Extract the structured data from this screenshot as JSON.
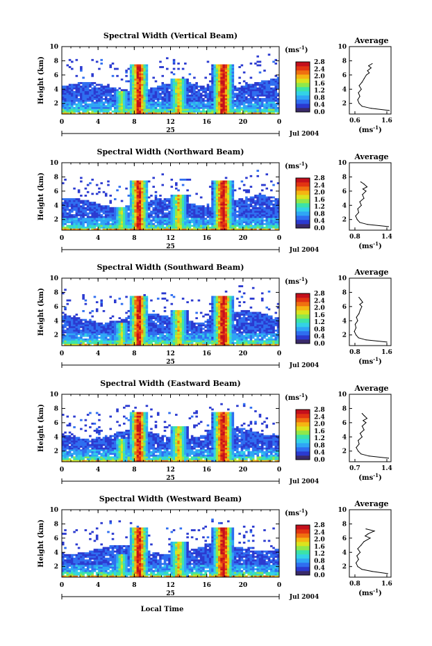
{
  "figure": {
    "xlabel": "Local Time",
    "date_label": "Jul 2004",
    "day_label": "25",
    "ylabel": "Height (km)",
    "colorbar_unit_base": "(ms",
    "colorbar_unit_exp": "-1",
    "profile_title": "Average",
    "profile_unit_base": "(ms",
    "profile_unit_exp": "-1"
  },
  "colorbar": {
    "ticks": [
      "2.8",
      "2.4",
      "2.0",
      "1.6",
      "1.2",
      "0.8",
      "0.4",
      "0.0"
    ],
    "colors": [
      "#3a2a6a",
      "#2b3ad0",
      "#2f6ef0",
      "#2fa6f5",
      "#33d2e6",
      "#3ce3a8",
      "#8fe84a",
      "#dbe31e",
      "#f5b512",
      "#f07010",
      "#e23412",
      "#c4101c"
    ]
  },
  "chart_data": [
    {
      "type": "heatmap",
      "title": "Spectral Width (Vertical Beam)",
      "xlabel": "Local Time",
      "ylabel": "Height (km)",
      "x_ticks": [
        "0",
        "4",
        "8",
        "12",
        "16",
        "20",
        "0"
      ],
      "xlim": [
        0,
        24
      ],
      "y_ticks": [
        "2",
        "4",
        "6",
        "8",
        "10"
      ],
      "ylim": [
        0.5,
        10
      ],
      "colorbar_range": [
        0.0,
        2.8
      ],
      "profile": {
        "title": "Average",
        "x_ticks": [
          "0.6",
          "1.6"
        ],
        "xlim": [
          0.45,
          1.6
        ],
        "y_ticks": [
          "2",
          "4",
          "6",
          "8",
          "10"
        ],
        "heights": [
          1.0,
          1.3,
          1.6,
          2.0,
          2.5,
          3.0,
          3.5,
          4.0,
          4.5,
          5.0,
          5.5,
          6.0,
          6.3,
          6.6,
          7.0,
          7.3,
          7.6
        ],
        "values": [
          1.55,
          1.05,
          0.8,
          0.72,
          0.68,
          0.74,
          0.7,
          0.78,
          0.72,
          0.8,
          0.86,
          0.92,
          1.0,
          0.95,
          1.05,
          0.98,
          1.08
        ]
      }
    },
    {
      "type": "heatmap",
      "title": "Spectral Width (Northward Beam)",
      "xlabel": "Local Time",
      "ylabel": "Height (km)",
      "x_ticks": [
        "0",
        "4",
        "8",
        "12",
        "16",
        "20",
        "0"
      ],
      "xlim": [
        0,
        24
      ],
      "y_ticks": [
        "2",
        "4",
        "6",
        "8",
        "10"
      ],
      "ylim": [
        0.5,
        10
      ],
      "colorbar_range": [
        0.0,
        2.8
      ],
      "profile": {
        "title": "Average",
        "x_ticks": [
          "0.8",
          "1.4"
        ],
        "xlim": [
          0.7,
          1.5
        ],
        "y_ticks": [
          "2",
          "4",
          "6",
          "8",
          "10"
        ],
        "heights": [
          1.0,
          1.3,
          1.6,
          2.0,
          2.5,
          3.0,
          3.5,
          4.0,
          4.5,
          5.0,
          5.5,
          6.0,
          6.3,
          6.6,
          7.0,
          7.3
        ],
        "values": [
          1.45,
          1.05,
          0.9,
          0.85,
          0.82,
          0.88,
          0.86,
          0.93,
          0.9,
          0.98,
          0.95,
          1.02,
          0.96,
          1.04,
          0.98,
          0.92
        ]
      }
    },
    {
      "type": "heatmap",
      "title": "Spectral Width (Southward Beam)",
      "xlabel": "Local Time",
      "ylabel": "Height (km)",
      "x_ticks": [
        "0",
        "4",
        "8",
        "12",
        "16",
        "20",
        "0"
      ],
      "xlim": [
        0,
        24
      ],
      "y_ticks": [
        "2",
        "4",
        "6",
        "8",
        "10"
      ],
      "ylim": [
        0.5,
        10
      ],
      "colorbar_range": [
        0.0,
        2.8
      ],
      "profile": {
        "title": "Average",
        "x_ticks": [
          "0.8",
          "1.6"
        ],
        "xlim": [
          0.7,
          1.7
        ],
        "y_ticks": [
          "2",
          "4",
          "6",
          "8",
          "10"
        ],
        "heights": [
          1.0,
          1.3,
          1.6,
          2.0,
          2.5,
          3.0,
          3.5,
          4.0,
          4.5,
          5.0,
          5.5,
          6.0,
          6.3,
          6.6,
          7.0,
          7.3
        ],
        "values": [
          1.6,
          1.1,
          0.92,
          0.86,
          0.82,
          0.86,
          0.84,
          0.9,
          0.87,
          0.93,
          0.96,
          1.0,
          0.95,
          1.02,
          0.97,
          0.93
        ]
      }
    },
    {
      "type": "heatmap",
      "title": "Spectral Width (Eastward Beam)",
      "xlabel": "Local Time",
      "ylabel": "Height (km)",
      "x_ticks": [
        "0",
        "4",
        "8",
        "12",
        "16",
        "20",
        "0"
      ],
      "xlim": [
        0,
        24
      ],
      "y_ticks": [
        "2",
        "4",
        "6",
        "8",
        "10"
      ],
      "ylim": [
        0.5,
        10
      ],
      "colorbar_range": [
        0.0,
        2.8
      ],
      "profile": {
        "title": "Average",
        "x_ticks": [
          "0.7",
          "1.4"
        ],
        "xlim": [
          0.6,
          1.45
        ],
        "y_ticks": [
          "2",
          "4",
          "6",
          "8",
          "10"
        ],
        "heights": [
          1.0,
          1.3,
          1.6,
          2.0,
          2.5,
          3.0,
          3.5,
          4.0,
          4.5,
          5.0,
          5.5,
          6.0,
          6.3,
          6.6,
          7.0,
          7.3
        ],
        "values": [
          1.4,
          1.0,
          0.84,
          0.78,
          0.74,
          0.8,
          0.78,
          0.86,
          0.82,
          0.9,
          0.86,
          0.94,
          0.88,
          0.96,
          0.9,
          0.86
        ]
      }
    },
    {
      "type": "heatmap",
      "title": "Spectral Width (Westward Beam)",
      "xlabel": "Local Time",
      "ylabel": "Height (km)",
      "x_ticks": [
        "0",
        "4",
        "8",
        "12",
        "16",
        "20",
        "0"
      ],
      "xlim": [
        0,
        24
      ],
      "y_ticks": [
        "2",
        "4",
        "6",
        "8",
        "10"
      ],
      "ylim": [
        0.5,
        10
      ],
      "colorbar_range": [
        0.0,
        2.8
      ],
      "profile": {
        "title": "Average",
        "x_ticks": [
          "0.8",
          "1.6"
        ],
        "xlim": [
          0.7,
          1.7
        ],
        "y_ticks": [
          "2",
          "4",
          "6",
          "8",
          "10"
        ],
        "heights": [
          1.0,
          1.3,
          1.6,
          2.0,
          2.5,
          3.0,
          3.5,
          4.0,
          4.5,
          5.0,
          5.5,
          6.0,
          6.3,
          6.6,
          7.0,
          7.3
        ],
        "values": [
          1.62,
          1.25,
          1.0,
          0.9,
          0.86,
          0.92,
          0.88,
          0.96,
          0.9,
          0.98,
          1.05,
          1.2,
          1.08,
          1.15,
          1.3,
          1.1
        ]
      }
    }
  ]
}
